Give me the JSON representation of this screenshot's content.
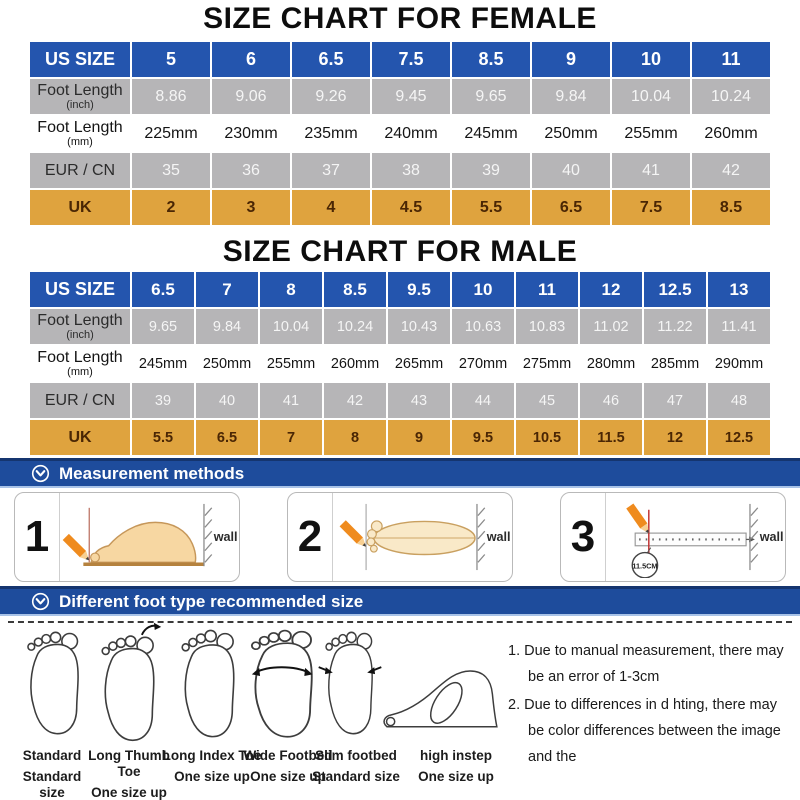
{
  "colors": {
    "header_blue": "#2455ae",
    "banner_blue": "#1e4c9c",
    "banner_dark": "#15356f",
    "row_gray": "#b6b5b7",
    "row_orange": "#dfa33e",
    "uk_text": "#4a2604",
    "gray_value_text": "#f5f5f5"
  },
  "tables": {
    "female": {
      "title": "SIZE CHART FOR FEMALE",
      "rows": [
        {
          "label": "US SIZE",
          "sub": "",
          "values": [
            "5",
            "6",
            "6.5",
            "7.5",
            "8.5",
            "9",
            "10",
            "11"
          ]
        },
        {
          "label": "Foot Length",
          "sub": "(inch)",
          "values": [
            "8.86",
            "9.06",
            "9.26",
            "9.45",
            "9.65",
            "9.84",
            "10.04",
            "10.24"
          ]
        },
        {
          "label": "Foot Length",
          "sub": "(mm)",
          "values": [
            "225mm",
            "230mm",
            "235mm",
            "240mm",
            "245mm",
            "250mm",
            "255mm",
            "260mm"
          ]
        },
        {
          "label": "EUR / CN",
          "sub": "",
          "values": [
            "35",
            "36",
            "37",
            "38",
            "39",
            "40",
            "41",
            "42"
          ]
        },
        {
          "label": "UK",
          "sub": "",
          "values": [
            "2",
            "3",
            "4",
            "4.5",
            "5.5",
            "6.5",
            "7.5",
            "8.5"
          ]
        }
      ]
    },
    "male": {
      "title": "SIZE CHART FOR MALE",
      "rows": [
        {
          "label": "US SIZE",
          "sub": "",
          "values": [
            "6.5",
            "7",
            "8",
            "8.5",
            "9.5",
            "10",
            "11",
            "12",
            "12.5",
            "13"
          ]
        },
        {
          "label": "Foot Length",
          "sub": "(inch)",
          "values": [
            "9.65",
            "9.84",
            "10.04",
            "10.24",
            "10.43",
            "10.63",
            "10.83",
            "11.02",
            "11.22",
            "11.41"
          ]
        },
        {
          "label": "Foot Length",
          "sub": "(mm)",
          "values": [
            "245mm",
            "250mm",
            "255mm",
            "260mm",
            "265mm",
            "270mm",
            "275mm",
            "280mm",
            "285mm",
            "290mm"
          ]
        },
        {
          "label": "EUR / CN",
          "sub": "",
          "values": [
            "39",
            "40",
            "41",
            "42",
            "43",
            "44",
            "45",
            "46",
            "47",
            "48"
          ]
        },
        {
          "label": "UK",
          "sub": "",
          "values": [
            "5.5",
            "6.5",
            "7",
            "8",
            "9",
            "9.5",
            "10.5",
            "11.5",
            "12",
            "12.5"
          ]
        }
      ]
    }
  },
  "banners": {
    "measurement": "Measurement methods",
    "foot_type": "Different foot type recommended size"
  },
  "measurement": {
    "steps": [
      {
        "num": "1",
        "wall_label": "wall"
      },
      {
        "num": "2",
        "wall_label": "wall"
      },
      {
        "num": "3",
        "wall_label": "wall",
        "callout": "11.5CM"
      }
    ]
  },
  "foot_types": [
    {
      "name": "Standard",
      "recommendation": "Standard size"
    },
    {
      "name": "Long Thumb Toe",
      "recommendation": "One size up"
    },
    {
      "name": "Long Index Toe",
      "recommendation": "One size up"
    },
    {
      "name": "Wide Footbed",
      "recommendation": "One size up"
    },
    {
      "name": "Slim footbed",
      "recommendation": "Standard size"
    },
    {
      "name": "high instep",
      "recommendation": "One size up"
    }
  ],
  "notes": [
    "1. Due to manual measurement, there may be an error of 1-3cm",
    "2. Due to differences in d  hting, there may be color differences between the image and the"
  ]
}
